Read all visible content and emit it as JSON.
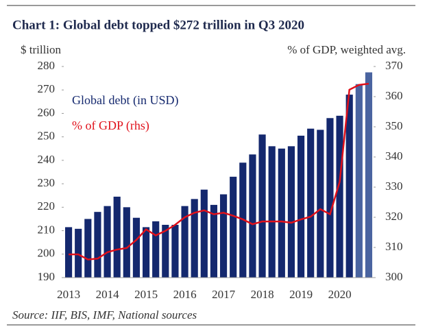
{
  "chart_data": {
    "type": "bar_line",
    "title": "Chart 1: Global debt topped $272 trillion in Q3 2020",
    "y_label": "$ trillion",
    "y2_label": "% of GDP, weighted avg.",
    "source": "Source: IIF, BIS, IMF, National sources",
    "categories": [
      "2013",
      null,
      null,
      null,
      "2014",
      null,
      null,
      null,
      "2015",
      null,
      null,
      null,
      "2016",
      null,
      null,
      null,
      "2017",
      null,
      null,
      null,
      "2018",
      null,
      null,
      null,
      "2019",
      null,
      null,
      null,
      "2020",
      null,
      null,
      null
    ],
    "series": [
      {
        "name": "Global debt (in USD)",
        "type": "bar",
        "axis": "y",
        "color": "#14286e",
        "colors": [
          "#14286e",
          "#14286e",
          "#14286e",
          "#14286e",
          "#14286e",
          "#14286e",
          "#14286e",
          "#14286e",
          "#14286e",
          "#14286e",
          "#14286e",
          "#14286e",
          "#14286e",
          "#14286e",
          "#14286e",
          "#14286e",
          "#14286e",
          "#14286e",
          "#14286e",
          "#14286e",
          "#14286e",
          "#14286e",
          "#14286e",
          "#14286e",
          "#14286e",
          "#14286e",
          "#14286e",
          "#14286e",
          "#14286e",
          "#14286e",
          "#4a64a0",
          "#4a64a0"
        ],
        "values": [
          211.5,
          210.8,
          215,
          218,
          220.5,
          224.5,
          220,
          215.5,
          211.5,
          214,
          212.5,
          212.5,
          220.5,
          223.5,
          227.5,
          221,
          225.5,
          233,
          239,
          242.5,
          251,
          246,
          245,
          246,
          250.5,
          253.5,
          253,
          258,
          259,
          268,
          272.5,
          277.5
        ]
      },
      {
        "name": "% of GDP (rhs)",
        "type": "line",
        "axis": "y2",
        "color": "#e0101a",
        "values": [
          307.7,
          307.7,
          306,
          306.3,
          308.4,
          309.3,
          309.8,
          312.5,
          316,
          314,
          315.5,
          317.5,
          320,
          321.5,
          322.3,
          321,
          321.5,
          320.5,
          319.3,
          317.7,
          318.6,
          318.6,
          318.6,
          318.2,
          319.3,
          320.2,
          322.7,
          321,
          331.8,
          362.3,
          363.9,
          364.3
        ]
      }
    ],
    "ylim": [
      190,
      280
    ],
    "yticks": [
      190,
      200,
      210,
      220,
      230,
      240,
      250,
      260,
      270,
      280
    ],
    "y2lim": [
      300,
      370
    ],
    "y2ticks": [
      300,
      310,
      320,
      330,
      340,
      350,
      360,
      370
    ]
  }
}
